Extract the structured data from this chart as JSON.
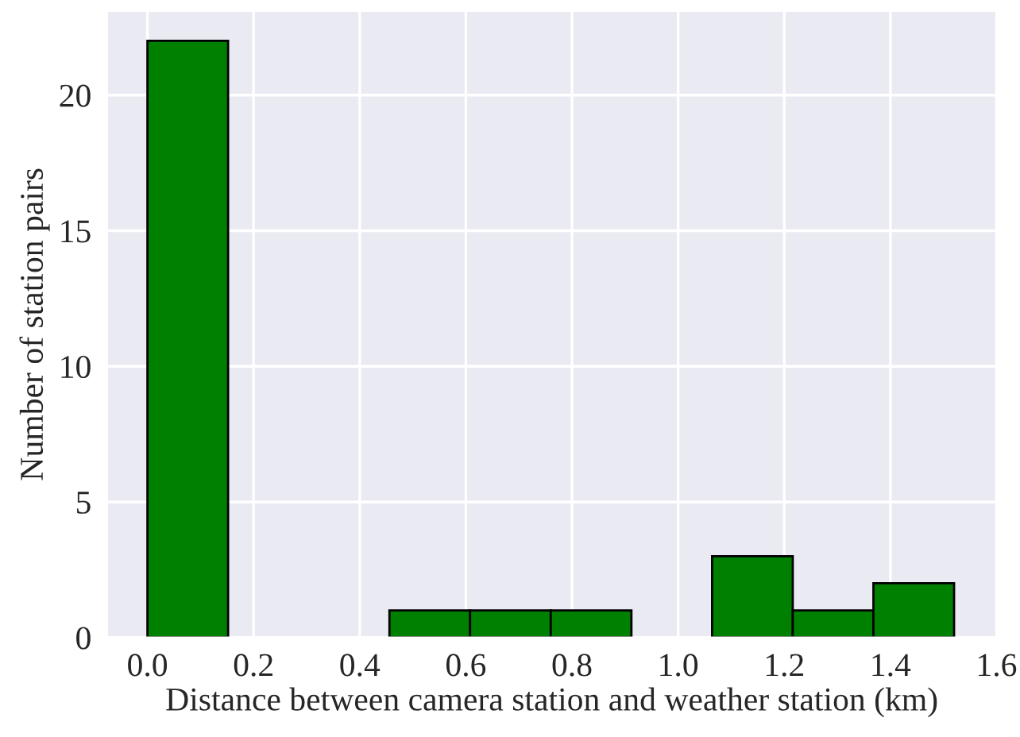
{
  "chart_data": {
    "type": "histogram",
    "xlabel": "Distance between camera station and weather station (km)",
    "ylabel": "Number of station pairs",
    "bins": [
      0,
      0.152,
      0.304,
      0.456,
      0.608,
      0.76,
      0.912,
      1.064,
      1.216,
      1.368,
      1.52
    ],
    "values": [
      22,
      0,
      0,
      1,
      1,
      1,
      0,
      3,
      1,
      2
    ],
    "color": "#008000",
    "xlim": [
      -0.076,
      1.6
    ],
    "xticks": [
      {
        "value": 0,
        "label": "0.0"
      },
      0.2,
      0.4,
      0.6,
      0.8,
      {
        "value": 1,
        "label": "1.0"
      },
      1.2,
      1.4,
      1.6
    ],
    "ylim": [
      0,
      23.1
    ],
    "yticks": [
      0,
      5,
      10,
      15,
      20
    ],
    "grid": true
  }
}
